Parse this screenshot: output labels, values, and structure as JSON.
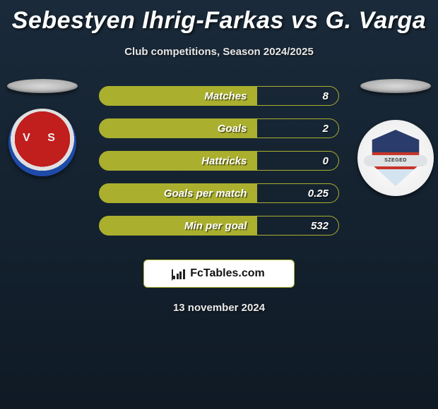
{
  "header": {
    "title": "Sebestyen Ihrig-Farkas vs G. Varga",
    "subtitle": "Club competitions, Season 2024/2025"
  },
  "colors": {
    "accent": "#aab02e",
    "background_top": "#1a2a3a",
    "background_bottom": "#0f1a25",
    "text": "#ffffff"
  },
  "left_badge": {
    "name": "vasas-badge",
    "text": "V S"
  },
  "right_badge": {
    "name": "szeged-badge",
    "banner": "SZEGED"
  },
  "stats": [
    {
      "label": "Matches",
      "value": "8"
    },
    {
      "label": "Goals",
      "value": "2"
    },
    {
      "label": "Hattricks",
      "value": "0"
    },
    {
      "label": "Goals per match",
      "value": "0.25"
    },
    {
      "label": "Min per goal",
      "value": "532"
    }
  ],
  "footer": {
    "brand": "FcTables.com",
    "date": "13 november 2024"
  }
}
